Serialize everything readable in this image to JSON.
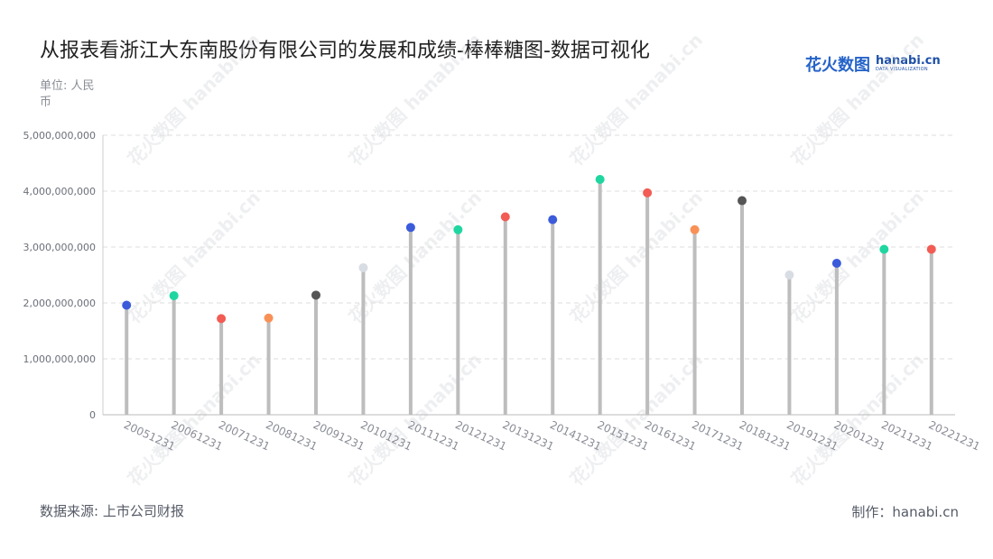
{
  "header": {
    "title": "从报表看浙江大东南股份有限公司的发展和成绩-棒棒糖图-数据可视化",
    "unit": "单位: 人民币"
  },
  "logo": {
    "cn_text": "花火数图",
    "en_text": "hanabi.cn",
    "en_sub": "DATA VISUALIZATION"
  },
  "footer": {
    "source": "数据来源: 上市公司财报",
    "credit": "制作：hanabi.cn"
  },
  "watermark": {
    "text": "花火数图 hanabi.cn"
  },
  "chart_data": {
    "type": "lollipop",
    "title": "从报表看浙江大东南股份有限公司的发展和成绩-棒棒糖图-数据可视化",
    "ylabel": "单位: 人民币",
    "ylim": [
      0,
      5000000000
    ],
    "yticks": [
      0,
      1000000000,
      2000000000,
      3000000000,
      4000000000,
      5000000000
    ],
    "ytick_labels": [
      "0",
      "1,000,000,000",
      "2,000,000,000",
      "3,000,000,000",
      "4,000,000,000",
      "5,000,000,000"
    ],
    "grid": true,
    "stem_color": "#bdbdbd",
    "categories": [
      "20051231",
      "20061231",
      "20071231",
      "20081231",
      "20091231",
      "20101231",
      "20111231",
      "20121231",
      "20131231",
      "20141231",
      "20151231",
      "20161231",
      "20171231",
      "20181231",
      "20191231",
      "20201231",
      "20211231",
      "20221231"
    ],
    "values": [
      1960000000,
      2130000000,
      1720000000,
      1730000000,
      2140000000,
      2630000000,
      3350000000,
      3310000000,
      3540000000,
      3490000000,
      4210000000,
      3970000000,
      3310000000,
      3830000000,
      2500000000,
      2710000000,
      2960000000,
      2960000000
    ],
    "colors": [
      "#3b5bdb",
      "#20d6a0",
      "#f25c54",
      "#f99157",
      "#555555",
      "#d8dce3",
      "#3b5bdb",
      "#20d6a0",
      "#f25c54",
      "#3b5bdb",
      "#20d6a0",
      "#f25c54",
      "#f99157",
      "#555555",
      "#d8dce3",
      "#3b5bdb",
      "#20d6a0",
      "#f25c54"
    ]
  }
}
